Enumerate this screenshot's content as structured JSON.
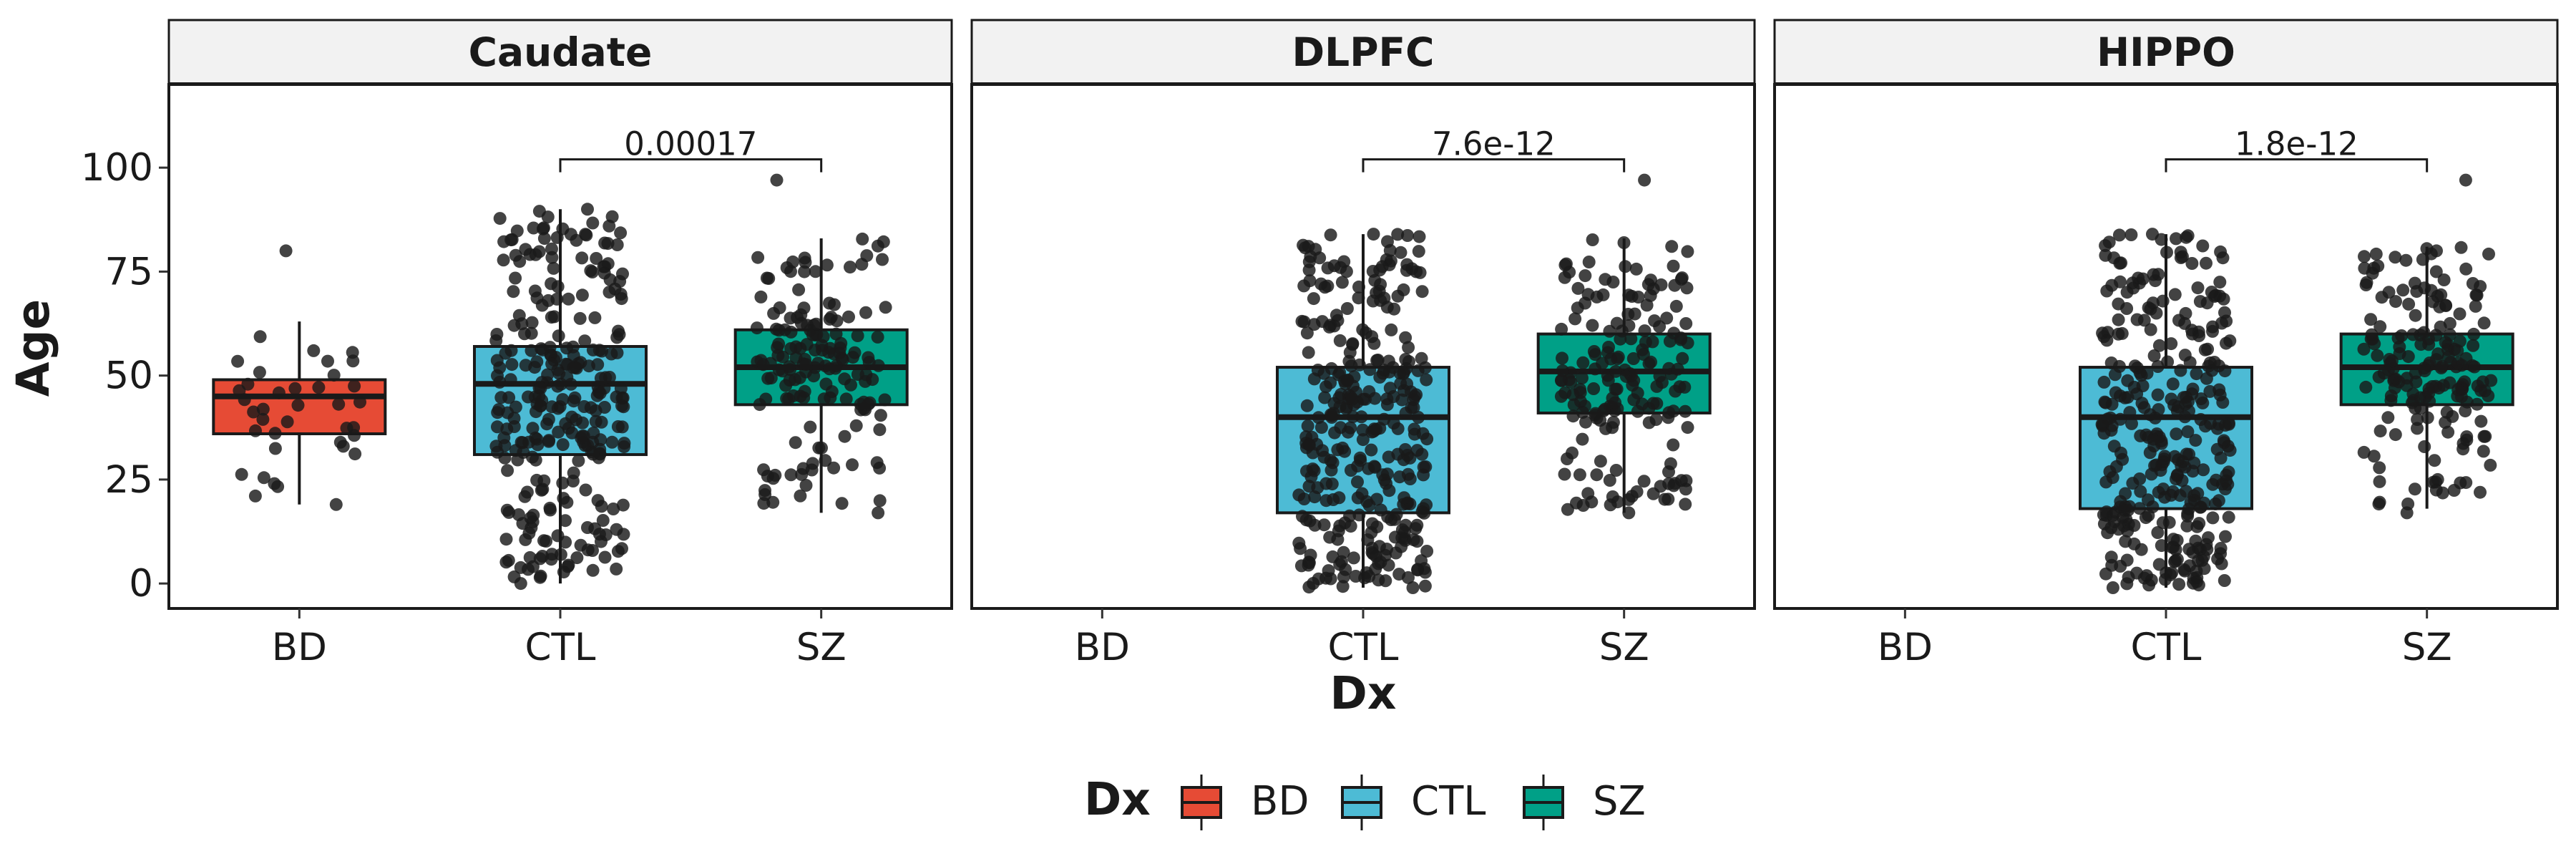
{
  "chart_data": {
    "type": "boxplot",
    "xlabel": "Dx",
    "ylabel": "Age",
    "ylim": [
      -6,
      120
    ],
    "yticks": [
      0,
      25,
      50,
      75,
      100
    ],
    "categories": [
      "BD",
      "CTL",
      "SZ"
    ],
    "colors": {
      "BD": "#E64B35",
      "CTL": "#4DBBD5",
      "SZ": "#00A087"
    },
    "point_color": "#1a1a1a",
    "legend": {
      "title": "Dx",
      "position": "bottom",
      "entries": [
        "BD",
        "CTL",
        "SZ"
      ]
    },
    "panels": [
      {
        "title": "Caudate",
        "comparison": {
          "from": "CTL",
          "to": "SZ",
          "label": "0.00017",
          "y": 102
        },
        "boxes": [
          {
            "group": "BD",
            "n": 38,
            "q1": 36,
            "median": 45,
            "q3": 49,
            "whisker_low": 19,
            "whisker_high": 63,
            "min": 19,
            "max": 80
          },
          {
            "group": "CTL",
            "n": 290,
            "q1": 31,
            "median": 48,
            "q3": 57,
            "whisker_low": 0,
            "whisker_high": 90,
            "min": 0,
            "max": 90
          },
          {
            "group": "SZ",
            "n": 160,
            "q1": 43,
            "median": 52,
            "q3": 61,
            "whisker_low": 17,
            "whisker_high": 83,
            "min": 17,
            "max": 97
          }
        ]
      },
      {
        "title": "DLPFC",
        "comparison": {
          "from": "CTL",
          "to": "SZ",
          "label": "7.6e-12",
          "y": 102
        },
        "boxes": [
          {
            "group": "CTL",
            "n": 330,
            "q1": 17,
            "median": 40,
            "q3": 52,
            "whisker_low": -1,
            "whisker_high": 84,
            "min": -1,
            "max": 84
          },
          {
            "group": "SZ",
            "n": 180,
            "q1": 41,
            "median": 51,
            "q3": 60,
            "whisker_low": 17,
            "whisker_high": 83,
            "min": 17,
            "max": 97
          }
        ]
      },
      {
        "title": "HIPPO",
        "comparison": {
          "from": "CTL",
          "to": "SZ",
          "label": "1.8e-12",
          "y": 102
        },
        "boxes": [
          {
            "group": "CTL",
            "n": 330,
            "q1": 18,
            "median": 40,
            "q3": 52,
            "whisker_low": -1,
            "whisker_high": 84,
            "min": -1,
            "max": 84
          },
          {
            "group": "SZ",
            "n": 180,
            "q1": 43,
            "median": 52,
            "q3": 60,
            "whisker_low": 18,
            "whisker_high": 81,
            "min": 17,
            "max": 97
          }
        ]
      }
    ]
  }
}
